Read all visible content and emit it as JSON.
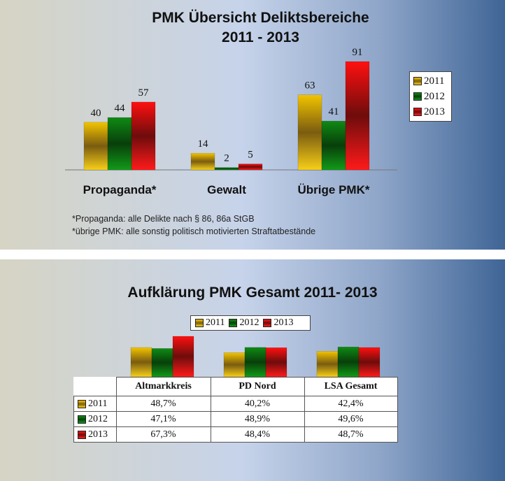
{
  "colors": {
    "2011": "#e8b400",
    "2012": "#0e7a12",
    "2013": "#e01010"
  },
  "panel1": {
    "title_line1": "PMK Übersicht Deliktsbereiche",
    "title_line2": "2011 - 2013",
    "legend": [
      "2011",
      "2012",
      "2013"
    ],
    "notes": [
      "*Propaganda: alle Delikte nach § 86, 86a StGB",
      "*übrige PMK:  alle sonstig politisch motivierten Straftatbestände"
    ]
  },
  "panel2": {
    "title": "Aufklärung PMK Gesamt  2011- 2013",
    "legend": [
      "2011",
      "2012",
      "2013"
    ],
    "table": {
      "columns": [
        "Altmarkkreis",
        "PD Nord",
        "LSA Gesamt"
      ],
      "rows": [
        {
          "label": "2011",
          "cells": [
            "48,7%",
            "40,2%",
            "42,4%"
          ]
        },
        {
          "label": "2012",
          "cells": [
            "47,1%",
            "48,9%",
            "49,6%"
          ]
        },
        {
          "label": "2013",
          "cells": [
            "67,3%",
            "48,4%",
            "48,7%"
          ]
        }
      ]
    }
  },
  "chart_data": [
    {
      "type": "bar",
      "title": "PMK Übersicht Deliktsbereiche 2011 - 2013",
      "categories": [
        "Propaganda*",
        "Gewalt",
        "Übrige PMK*"
      ],
      "series": [
        {
          "name": "2011",
          "values": [
            40,
            14,
            63
          ]
        },
        {
          "name": "2012",
          "values": [
            44,
            2,
            41
          ]
        },
        {
          "name": "2013",
          "values": [
            57,
            5,
            91
          ]
        }
      ],
      "data_labels": true,
      "legend": "right",
      "grid": false
    },
    {
      "type": "bar",
      "title": "Aufklärung PMK Gesamt  2011- 2013",
      "categories": [
        "Altmarkkreis",
        "PD Nord",
        "LSA Gesamt"
      ],
      "series": [
        {
          "name": "2011",
          "values": [
            48.7,
            40.2,
            42.4
          ]
        },
        {
          "name": "2012",
          "values": [
            47.1,
            48.9,
            49.6
          ]
        },
        {
          "name": "2013",
          "values": [
            67.3,
            48.4,
            48.7
          ]
        }
      ],
      "unit": "%",
      "data_table": true,
      "legend": "top",
      "grid": false
    }
  ]
}
